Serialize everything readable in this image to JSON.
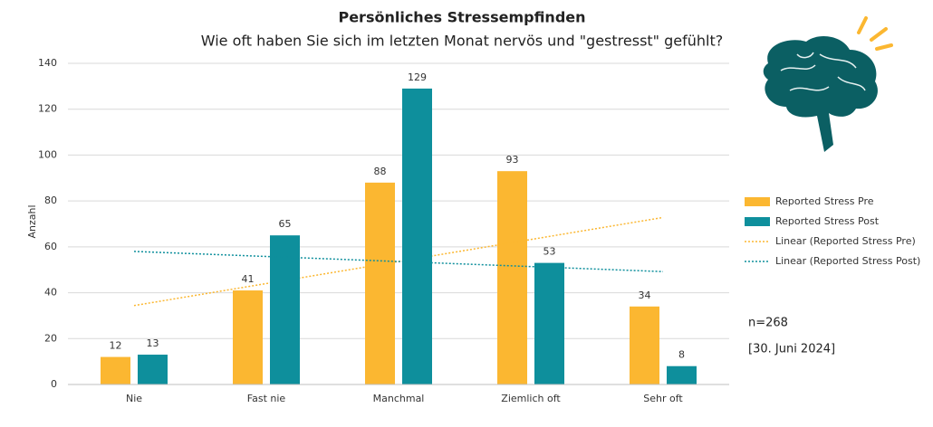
{
  "chart_data": {
    "type": "bar",
    "title": "Persönliches Stressempfinden",
    "subtitle": "Wie oft haben Sie sich im letzten Monat nervös und \"gestresst\" gefühlt?",
    "y_label": "Anzahl",
    "categories": [
      "Nie",
      "Fast nie",
      "Manchmal",
      "Ziemlich oft",
      "Sehr oft"
    ],
    "series": [
      {
        "name": "Reported Stress Pre",
        "color": "#fbb731",
        "values": [
          12,
          41,
          88,
          93,
          34
        ],
        "trendline": {
          "name": "Linear (Reported Stress Pre)",
          "color": "#fbb731"
        }
      },
      {
        "name": "Reported Stress Post",
        "color": "#0e8f9c",
        "values": [
          13,
          65,
          129,
          53,
          8
        ],
        "trendline": {
          "name": "Linear (Reported Stress Post)",
          "color": "#0e8f9c"
        }
      }
    ],
    "ylim": [
      0,
      140
    ],
    "yticks": [
      0,
      20,
      40,
      60,
      80,
      100,
      120,
      140
    ],
    "grid": true,
    "legend": "right",
    "annotations": [
      "n=268",
      "[30. Juni 2024]"
    ]
  }
}
